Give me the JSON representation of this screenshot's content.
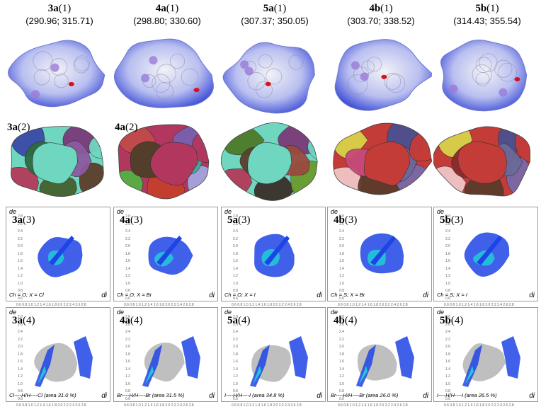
{
  "columns": [
    {
      "compound": "3a",
      "volume": "(290.96; 315.71)",
      "caption3": "Ch = O;  X = Cl",
      "caption4": "Cl----H/H----Cl (area 31.0 %)"
    },
    {
      "compound": "4a",
      "volume": "(298.80; 330.60)",
      "caption3": "Ch = O;  X = Br",
      "caption4": "Br----H/H----Br (area 31.5 %)"
    },
    {
      "compound": "5a",
      "volume": "(307.37; 350.05)",
      "caption3": "Ch = O;  X = I",
      "caption4": "I----H/H----I (area 34.8 %)"
    },
    {
      "compound": "4b",
      "volume": "(303.70; 338.52)",
      "caption3": "Ch = S;  X = Br",
      "caption4": "Br----H/H----Br (area 26.0 %)"
    },
    {
      "compound": "5b",
      "volume": "(314.43; 355.54)",
      "caption3": "Ch = S;  X = I",
      "caption4": "I----H/H----I (area 26.5 %)"
    }
  ],
  "labels": {
    "row1": "(1)",
    "row2": "(2)",
    "row3": "(3)",
    "row4": "(4)",
    "de": "de",
    "di": "di"
  },
  "axis_ticks": [
    "2.8",
    "2.6",
    "2.4",
    "2.2",
    "2.0",
    "1.8",
    "1.6",
    "1.4",
    "1.2",
    "1.0",
    "0.8",
    "0.6"
  ],
  "x_ticks": "0.6 0.8 1.0 1.2 1.4 1.6 1.8 2.0 2.2 2.4 2.6 2.8",
  "colors": {
    "dnorm_blue": "#3f4fd8",
    "dnorm_white": "#f2f2f6",
    "dnorm_red": "#d8101a",
    "fp_blue": "#1f44e6",
    "fp_cyan": "#21c7d8",
    "fp_gray": "#b8b8b8"
  }
}
